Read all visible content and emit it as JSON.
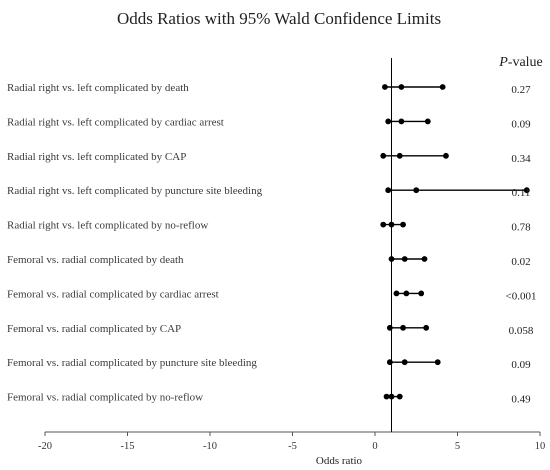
{
  "chart_data": {
    "type": "forest",
    "title": "Odds Ratios with 95% Wald Confidence Limits",
    "xlabel": "Odds ratio",
    "pvalue_header_italic": "P",
    "pvalue_header_rest": "-value",
    "xlim": [
      -20,
      10
    ],
    "xticks": [
      {
        "value": -20,
        "label": "-20"
      },
      {
        "value": -15,
        "label": "-15"
      },
      {
        "value": -10,
        "label": "-10"
      },
      {
        "value": -5,
        "label": "-5"
      },
      {
        "value": 0,
        "label": "0"
      },
      {
        "value": 5,
        "label": "5"
      },
      {
        "value": 10,
        "label": "10"
      }
    ],
    "reference_line": 1,
    "rows": [
      {
        "label": "Radial right vs. left complicated by death",
        "lower": 0.6,
        "estimate": 1.6,
        "upper": 4.1,
        "p": "0.27"
      },
      {
        "label": "Radial right vs. left complicated by cardiac arrest",
        "lower": 0.8,
        "estimate": 1.6,
        "upper": 3.2,
        "p": "0.09"
      },
      {
        "label": "Radial right vs. left complicated by CAP",
        "lower": 0.5,
        "estimate": 1.5,
        "upper": 4.3,
        "p": "0.34"
      },
      {
        "label": "Radial right vs. left complicated by puncture site bleeding",
        "lower": 0.8,
        "estimate": 2.5,
        "upper": 9.2,
        "p": "0.11"
      },
      {
        "label": "Radial right vs. left complicated by no-reflow",
        "lower": 0.5,
        "estimate": 1.0,
        "upper": 1.7,
        "p": "0.78"
      },
      {
        "label": "Femoral vs. radial complicated by death",
        "lower": 1.0,
        "estimate": 1.8,
        "upper": 3.0,
        "p": "0.02"
      },
      {
        "label": "Femoral vs. radial complicated by cardiac arrest",
        "lower": 1.3,
        "estimate": 1.9,
        "upper": 2.8,
        "p": "<0.001"
      },
      {
        "label": "Femoral vs. radial complicated by CAP",
        "lower": 0.9,
        "estimate": 1.7,
        "upper": 3.1,
        "p": "0.058"
      },
      {
        "label": "Femoral vs. radial complicated by puncture site bleeding",
        "lower": 0.9,
        "estimate": 1.8,
        "upper": 3.8,
        "p": "0.09"
      },
      {
        "label": "Femoral vs. radial complicated by no-reflow",
        "lower": 0.7,
        "estimate": 1.0,
        "upper": 1.5,
        "p": "0.49"
      }
    ],
    "grid": false,
    "legend": "none",
    "marker_color": "#000000",
    "text_color": "#222222"
  }
}
